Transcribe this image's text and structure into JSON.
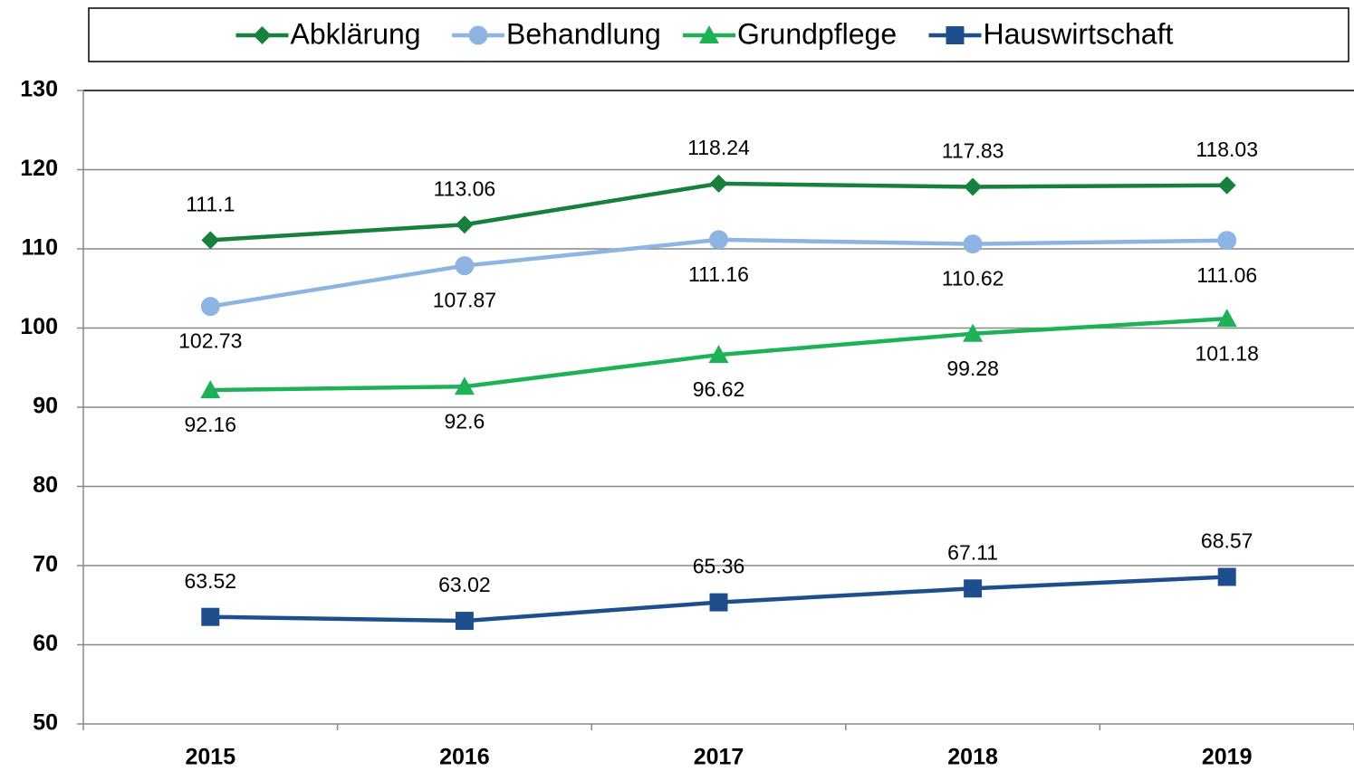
{
  "chart_data": {
    "type": "line",
    "categories": [
      "2015",
      "2016",
      "2017",
      "2018",
      "2019"
    ],
    "series": [
      {
        "name": "Abklärung",
        "color": "#17803c",
        "marker": "diamond",
        "label_position": "above",
        "values": [
          111.1,
          113.06,
          118.24,
          117.83,
          118.03
        ]
      },
      {
        "name": "Behandlung",
        "color": "#8db4e2",
        "marker": "circle",
        "label_position": "below",
        "values": [
          102.73,
          107.87,
          111.16,
          110.62,
          111.06
        ]
      },
      {
        "name": "Grundpflege",
        "color": "#1fb158",
        "marker": "triangle",
        "label_position": "below",
        "values": [
          92.16,
          92.6,
          96.62,
          99.28,
          101.18
        ]
      },
      {
        "name": "Hauswirtschaft",
        "color": "#1f4e8c",
        "marker": "square",
        "label_position": "above",
        "values": [
          63.52,
          63.02,
          65.36,
          67.11,
          68.57
        ]
      }
    ],
    "ylim": [
      50,
      130
    ],
    "yticks": [
      50,
      60,
      70,
      80,
      90,
      100,
      110,
      120,
      130
    ],
    "grid": true,
    "legend": "top"
  }
}
